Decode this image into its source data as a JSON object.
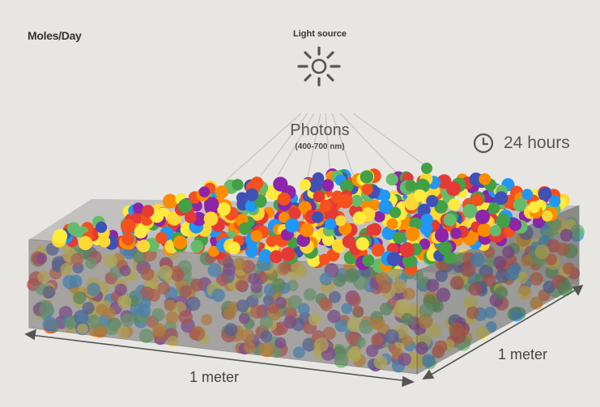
{
  "title": "Moles/Day",
  "light_source_label": "Light source",
  "photons_label": "Photons",
  "photons_range": "(400-700 nm)",
  "duration_label": "24 hours",
  "width_label": "1 meter",
  "depth_label": "1 meter",
  "icons": {
    "light": "sun-icon",
    "duration": "clock-icon"
  },
  "colors": {
    "background": "#e8e6e3",
    "box_fill": "#6e6e6e",
    "photon_palette": [
      "#e53935",
      "#3f51b5",
      "#43a047",
      "#fdd835",
      "#8e24aa",
      "#fb8c00",
      "#2196f3",
      "#ffeb3b",
      "#66bb6a",
      "#f4511e"
    ]
  }
}
